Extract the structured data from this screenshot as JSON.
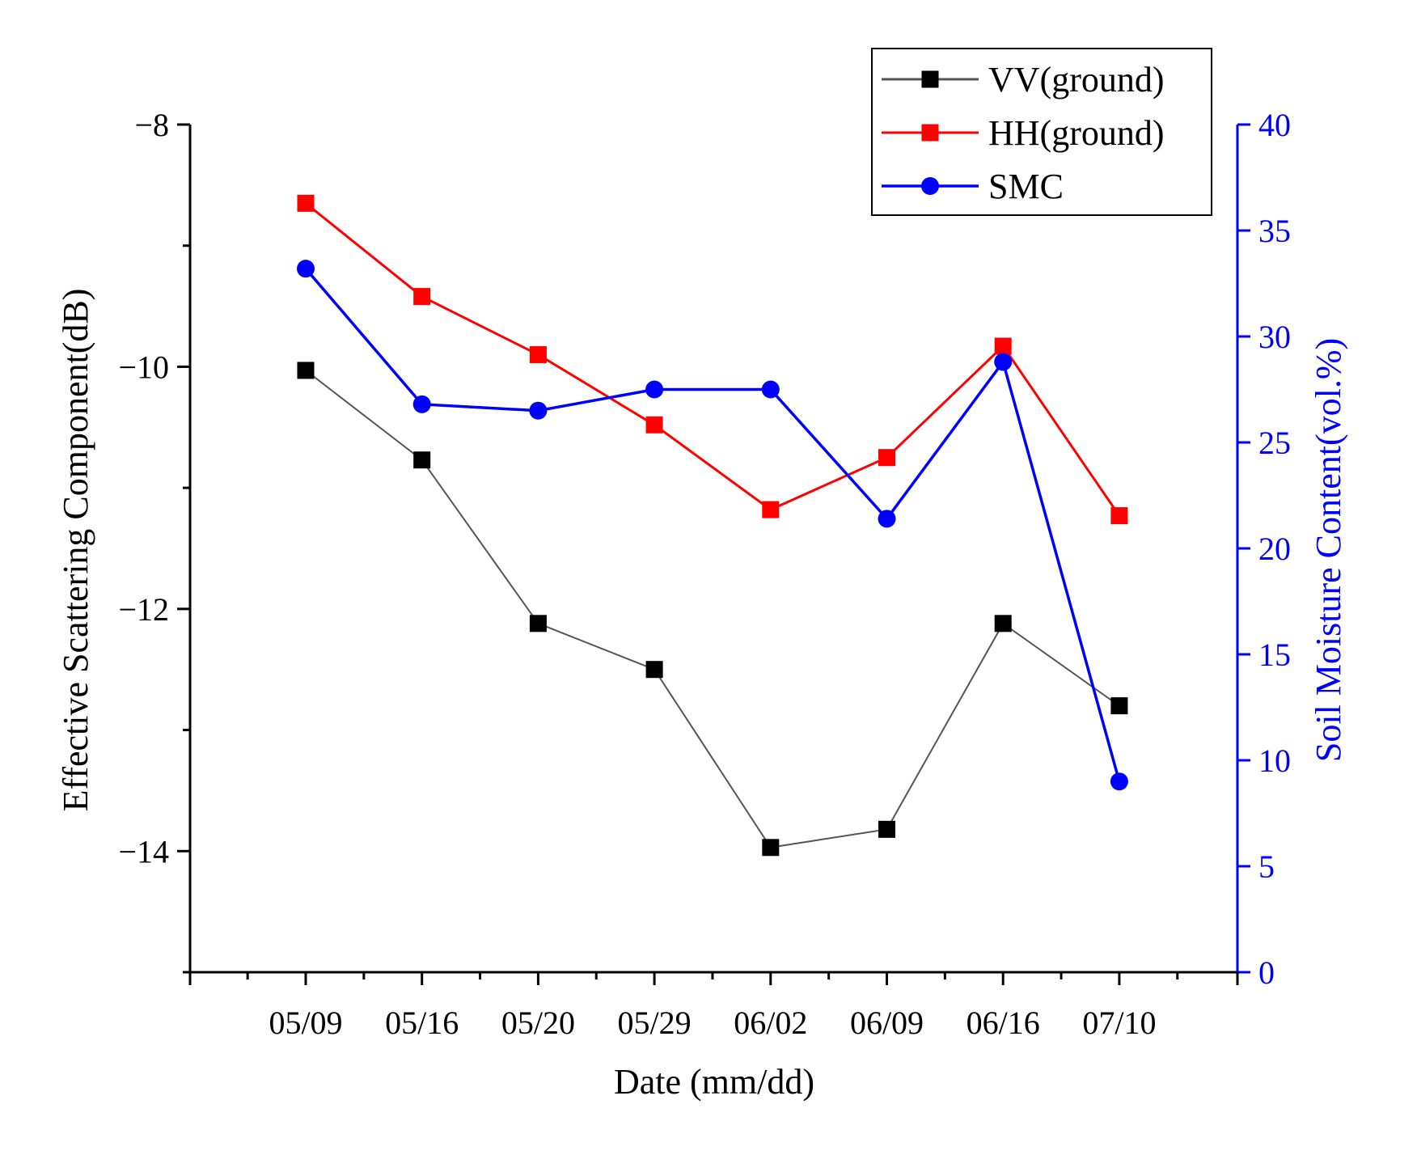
{
  "chart_data": {
    "type": "line",
    "title": "",
    "xlabel": "Date (mm/dd)",
    "ylabel": "Effective Scattering Component(dB)",
    "y2label": "Soil Moisture Content(vol.%)",
    "categories": [
      "05/09",
      "05/16",
      "05/20",
      "05/29",
      "06/02",
      "06/09",
      "06/16",
      "07/10"
    ],
    "ylim": [
      -15,
      -8
    ],
    "yticks": [
      "-8",
      "-10",
      "-12",
      "-14"
    ],
    "y2lim": [
      0,
      40
    ],
    "y2ticks": [
      "0",
      "5",
      "10",
      "15",
      "20",
      "25",
      "30",
      "35",
      "40"
    ],
    "grid": false,
    "legend_position": "top-right",
    "series": [
      {
        "name": "VV(ground)",
        "axis": "left",
        "marker": "square",
        "color": "#000000",
        "line_color": "#555555",
        "values": [
          -10.03,
          -10.77,
          -12.12,
          -12.5,
          -13.97,
          -13.82,
          -12.12,
          -12.8
        ]
      },
      {
        "name": "HH(ground)",
        "axis": "left",
        "marker": "square",
        "color": "#ff0000",
        "line_color": "#ff0000",
        "values": [
          -8.65,
          -9.42,
          -9.9,
          -10.48,
          -11.18,
          -10.75,
          -9.83,
          -11.23
        ]
      },
      {
        "name": "SMC",
        "axis": "right",
        "marker": "circle",
        "color": "#0000ff",
        "line_color": "#0000ff",
        "values": [
          33.2,
          26.8,
          26.5,
          27.5,
          27.5,
          21.4,
          28.8,
          9.0
        ]
      }
    ]
  }
}
